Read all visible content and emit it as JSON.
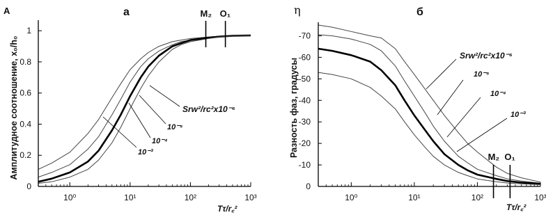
{
  "chart_data": [
    {
      "type": "line",
      "panel_letter": "A",
      "title": "а",
      "ylabel": "Амплитудное соотношение, x₀/h₀",
      "xlabel": "Tτ/r꜀²",
      "xscale": "log",
      "xlim": [
        0.3,
        1000
      ],
      "ylim": [
        0,
        1.05
      ],
      "x_ticks": [
        "10⁰",
        "10¹",
        "10²",
        "10³"
      ],
      "y_ticks": [
        "0",
        "0.2",
        "0.4",
        "0.6",
        "0.8",
        "1"
      ],
      "vertical_markers": [
        {
          "label": "M₂",
          "x": 180
        },
        {
          "label": "O₁",
          "x": 380
        }
      ],
      "curve_labels": [
        "Srw²/rc²x10⁻⁶",
        "10⁻⁵",
        "10⁻⁴",
        "10⁻³"
      ],
      "x": [
        0.3,
        0.5,
        1,
        2,
        3,
        5,
        7,
        10,
        15,
        20,
        30,
        50,
        70,
        100,
        200,
        300,
        500,
        1000
      ],
      "series": [
        {
          "id": "s-1e-6",
          "values": [
            0.11,
            0.15,
            0.22,
            0.34,
            0.43,
            0.57,
            0.66,
            0.75,
            0.82,
            0.86,
            0.9,
            0.93,
            0.94,
            0.95,
            0.96,
            0.965,
            0.97,
            0.97
          ]
        },
        {
          "id": "s-1e-5",
          "values": [
            0.06,
            0.09,
            0.14,
            0.24,
            0.32,
            0.46,
            0.56,
            0.67,
            0.77,
            0.82,
            0.87,
            0.91,
            0.93,
            0.94,
            0.955,
            0.962,
            0.968,
            0.97
          ]
        },
        {
          "id": "s-1e-4",
          "values": [
            0.03,
            0.05,
            0.09,
            0.16,
            0.23,
            0.36,
            0.46,
            0.58,
            0.7,
            0.77,
            0.84,
            0.9,
            0.92,
            0.94,
            0.955,
            0.962,
            0.968,
            0.97
          ]
        },
        {
          "id": "s-1e-3",
          "values": [
            0.02,
            0.03,
            0.06,
            0.11,
            0.17,
            0.28,
            0.38,
            0.5,
            0.63,
            0.71,
            0.8,
            0.88,
            0.91,
            0.93,
            0.95,
            0.96,
            0.967,
            0.97
          ]
        }
      ]
    },
    {
      "type": "line",
      "panel_letter": "η",
      "title": "б",
      "ylabel": "Разность фаз, градусы",
      "xlabel": "Tτ/r꜀²",
      "xscale": "log",
      "xlim": [
        0.3,
        1000
      ],
      "ylim": [
        0,
        75
      ],
      "x_ticks": [
        "10⁰",
        "10¹",
        "10²",
        "10³"
      ],
      "y_ticks": [
        "0",
        "-10",
        "-20",
        "-30",
        "-40",
        "-50",
        "-60",
        "-70"
      ],
      "vertical_markers": [
        {
          "label": "M₂",
          "x": 180
        },
        {
          "label": "O₁",
          "x": 330
        }
      ],
      "curve_labels": [
        "Srw²/rc²x10⁻⁶",
        "10⁻⁵",
        "10⁻⁴",
        "10⁻³"
      ],
      "x": [
        0.3,
        0.5,
        1,
        2,
        3,
        5,
        7,
        10,
        15,
        20,
        30,
        50,
        70,
        100,
        200,
        300,
        500,
        1000
      ],
      "series": [
        {
          "id": "s-1e-6",
          "values": [
            75,
            74,
            72,
            70,
            69,
            64,
            58,
            52,
            45,
            40,
            33,
            25,
            20,
            16,
            9,
            6,
            4,
            2
          ]
        },
        {
          "id": "s-1e-5",
          "values": [
            70.5,
            70,
            68.5,
            66,
            63,
            56,
            49,
            42,
            34,
            28,
            21,
            14,
            11,
            8,
            5,
            3.5,
            2.5,
            1.5
          ]
        },
        {
          "id": "s-1e-4",
          "values": [
            64,
            63,
            61,
            58,
            54,
            47,
            40,
            33,
            26,
            21,
            15,
            10,
            7.5,
            5.5,
            3.5,
            2.5,
            1.8,
            1.2
          ]
        },
        {
          "id": "s-1e-3",
          "values": [
            53,
            52,
            50,
            46,
            42,
            36,
            30,
            24,
            18,
            14,
            10,
            6.5,
            5,
            3.5,
            2.2,
            1.6,
            1.2,
            0.8
          ]
        }
      ]
    }
  ]
}
